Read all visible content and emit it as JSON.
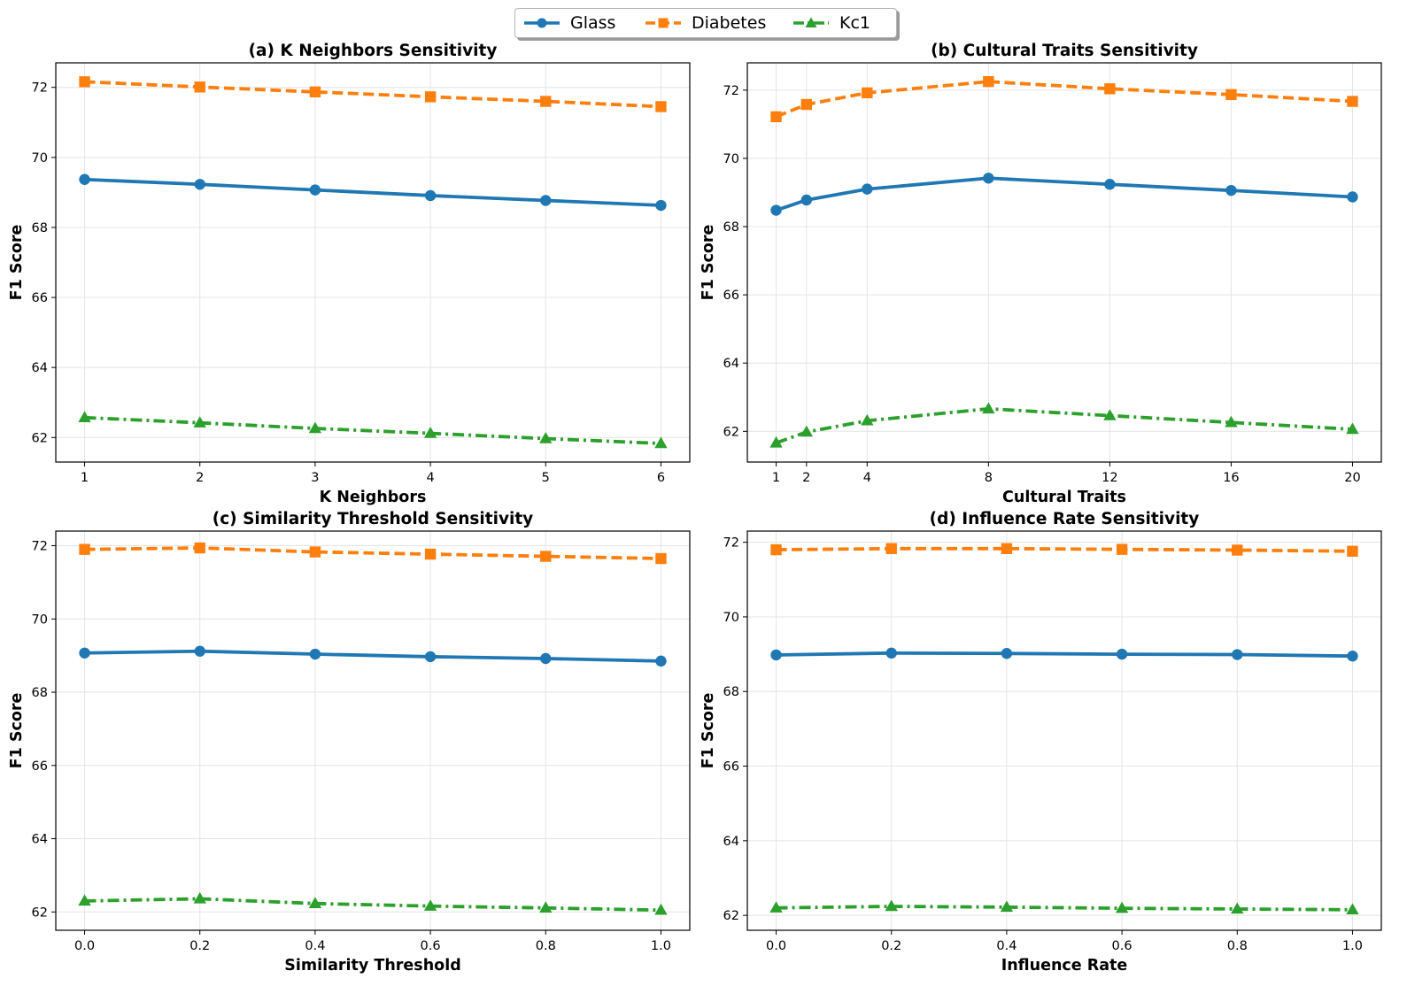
{
  "figure": {
    "legend": [
      {
        "name": "Glass",
        "color": "#1f77b4",
        "marker": "circle",
        "dash": "solid"
      },
      {
        "name": "Diabetes",
        "color": "#ff7f0e",
        "marker": "square",
        "dash": "dashed"
      },
      {
        "name": "Kc1",
        "color": "#2ca02c",
        "marker": "triangle",
        "dash": "dashdot"
      }
    ]
  },
  "chart_data": [
    {
      "type": "line",
      "title": "(a) K Neighbors Sensitivity",
      "xlabel": "K Neighbors",
      "ylabel": "F1 Score",
      "x": [
        1,
        2,
        3,
        4,
        5,
        6
      ],
      "xticks": [
        1,
        2,
        3,
        4,
        5,
        6
      ],
      "xtick_labels": [
        "1",
        "2",
        "3",
        "4",
        "5",
        "6"
      ],
      "xlim": [
        0.75,
        6.25
      ],
      "yticks": [
        62,
        64,
        66,
        68,
        70,
        72
      ],
      "ylim": [
        61.3,
        72.7
      ],
      "grid": true,
      "series": [
        {
          "name": "Glass",
          "values": [
            69.37,
            69.23,
            69.07,
            68.91,
            68.77,
            68.63
          ]
        },
        {
          "name": "Diabetes",
          "values": [
            72.16,
            72.01,
            71.87,
            71.73,
            71.6,
            71.45
          ]
        },
        {
          "name": "Kc1",
          "values": [
            62.57,
            62.42,
            62.26,
            62.12,
            61.97,
            61.83
          ]
        }
      ]
    },
    {
      "type": "line",
      "title": "(b) Cultural Traits Sensitivity",
      "xlabel": "Cultural Traits",
      "ylabel": "F1 Score",
      "x": [
        1,
        2,
        4,
        8,
        12,
        16,
        20
      ],
      "xticks": [
        1,
        2,
        4,
        8,
        12,
        16,
        20
      ],
      "xtick_labels": [
        "1",
        "2",
        "4",
        "8",
        "12",
        "16",
        "20"
      ],
      "xlim": [
        0.05,
        20.95
      ],
      "yticks": [
        62,
        64,
        66,
        68,
        70,
        72
      ],
      "ylim": [
        61.1,
        72.8
      ],
      "grid": true,
      "series": [
        {
          "name": "Glass",
          "values": [
            68.48,
            68.78,
            69.1,
            69.42,
            69.24,
            69.06,
            68.87
          ]
        },
        {
          "name": "Diabetes",
          "values": [
            71.22,
            71.58,
            71.92,
            72.25,
            72.04,
            71.87,
            71.67
          ]
        },
        {
          "name": "Kc1",
          "values": [
            61.66,
            61.98,
            62.31,
            62.66,
            62.46,
            62.26,
            62.06
          ]
        }
      ]
    },
    {
      "type": "line",
      "title": "(c) Similarity Threshold Sensitivity",
      "xlabel": "Similarity Threshold",
      "ylabel": "F1 Score",
      "x": [
        0.0,
        0.2,
        0.4,
        0.6,
        0.8,
        1.0
      ],
      "xticks": [
        0.0,
        0.2,
        0.4,
        0.6,
        0.8,
        1.0
      ],
      "xtick_labels": [
        "0.0",
        "0.2",
        "0.4",
        "0.6",
        "0.8",
        "1.0"
      ],
      "xlim": [
        -0.05,
        1.05
      ],
      "yticks": [
        62,
        64,
        66,
        68,
        70,
        72
      ],
      "ylim": [
        61.5,
        72.4
      ],
      "grid": true,
      "series": [
        {
          "name": "Glass",
          "values": [
            69.07,
            69.12,
            69.04,
            68.97,
            68.92,
            68.85
          ]
        },
        {
          "name": "Diabetes",
          "values": [
            71.9,
            71.94,
            71.83,
            71.77,
            71.71,
            71.65
          ]
        },
        {
          "name": "Kc1",
          "values": [
            62.3,
            62.36,
            62.23,
            62.16,
            62.11,
            62.05
          ]
        }
      ]
    },
    {
      "type": "line",
      "title": "(d) Influence Rate Sensitivity",
      "xlabel": "Influence Rate",
      "ylabel": "F1 Score",
      "x": [
        0.0,
        0.2,
        0.4,
        0.6,
        0.8,
        1.0
      ],
      "xticks": [
        0.0,
        0.2,
        0.4,
        0.6,
        0.8,
        1.0
      ],
      "xtick_labels": [
        "0.0",
        "0.2",
        "0.4",
        "0.6",
        "0.8",
        "1.0"
      ],
      "xlim": [
        -0.05,
        1.05
      ],
      "yticks": [
        62,
        64,
        66,
        68,
        70,
        72
      ],
      "ylim": [
        61.6,
        72.3
      ],
      "grid": true,
      "series": [
        {
          "name": "Glass",
          "values": [
            68.98,
            69.03,
            69.02,
            69.0,
            68.99,
            68.95
          ]
        },
        {
          "name": "Diabetes",
          "values": [
            71.8,
            71.83,
            71.83,
            71.81,
            71.79,
            71.76
          ]
        },
        {
          "name": "Kc1",
          "values": [
            62.2,
            62.24,
            62.22,
            62.19,
            62.17,
            62.15
          ]
        }
      ]
    }
  ]
}
